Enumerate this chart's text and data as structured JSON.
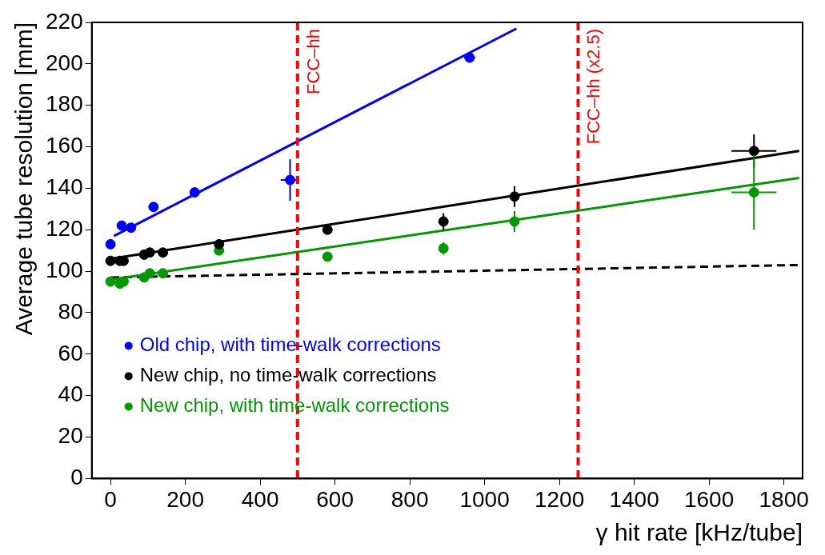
{
  "chart_data": {
    "type": "scatter",
    "xlabel": "γ hit rate [kHz/tube]",
    "ylabel": "Average tube resolution [mm]",
    "xlim": [
      -50,
      1850
    ],
    "xticks": [
      0,
      200,
      400,
      600,
      800,
      1000,
      1200,
      1400,
      1600,
      1800
    ],
    "ylim": [
      0,
      220
    ],
    "yticks": [
      0,
      20,
      40,
      60,
      80,
      100,
      120,
      140,
      160,
      180,
      200,
      220
    ],
    "grid": false,
    "legend": "bottom left",
    "marker": "circle",
    "series": [
      {
        "name": "Old chip, with time-walk corrections",
        "color": "#0000ff",
        "x": [
          0,
          30,
          55,
          115,
          225,
          480,
          960
        ],
        "values": [
          113,
          122,
          121,
          131,
          138,
          144,
          203
        ],
        "errors": [
          null,
          null,
          null,
          null,
          null,
          10,
          null
        ],
        "xerrors": [
          null,
          null,
          null,
          null,
          null,
          25,
          15
        ]
      },
      {
        "name": "New chip, no time-walk corrections",
        "color": "#000000",
        "x": [
          0,
          25,
          35,
          90,
          105,
          140,
          290,
          580,
          890,
          1080,
          1720
        ],
        "values": [
          105,
          105,
          105,
          108,
          109,
          109,
          113,
          120,
          124,
          136,
          158
        ],
        "errors": [
          null,
          null,
          null,
          null,
          null,
          null,
          null,
          null,
          4,
          5,
          8
        ],
        "xerrors": [
          null,
          null,
          null,
          null,
          null,
          null,
          null,
          null,
          null,
          null,
          60
        ]
      },
      {
        "name": "New chip, with time-walk corrections",
        "color": "#009900",
        "x": [
          0,
          25,
          35,
          90,
          105,
          140,
          290,
          580,
          890,
          1080,
          1720
        ],
        "values": [
          95,
          94,
          95,
          97,
          99,
          99,
          110,
          107,
          111,
          124,
          138
        ],
        "errors": [
          null,
          null,
          null,
          null,
          null,
          null,
          null,
          null,
          3,
          5,
          18
        ],
        "xerrors": [
          null,
          null,
          null,
          null,
          null,
          null,
          null,
          null,
          null,
          null,
          60
        ]
      },
      {
        "type": "line",
        "color": "#0000ff",
        "marker": "none",
        "line_style": "solid",
        "x": [
          9,
          1085
        ],
        "values": [
          117,
          217
        ]
      },
      {
        "type": "line",
        "color": "#000000",
        "marker": "none",
        "line_style": "solid",
        "x": [
          2,
          1841
        ],
        "values": [
          106,
          158
        ]
      },
      {
        "type": "line",
        "color": "#009900",
        "marker": "none",
        "line_style": "solid",
        "x": [
          2,
          1841
        ],
        "values": [
          96,
          145
        ]
      },
      {
        "type": "line",
        "color": "#000000",
        "marker": "none",
        "line_style": "dashed",
        "x": [
          2,
          1841
        ],
        "values": [
          97,
          103
        ]
      }
    ],
    "ref_lines": [
      {
        "axis": "x",
        "value": 500,
        "label": "FCC–hh",
        "color": "#ff0000",
        "line_style": "dashed"
      },
      {
        "axis": "x",
        "value": 1250,
        "label": "FCC–hh (x2.5)",
        "color": "#ff0000",
        "line_style": "dashed"
      }
    ]
  }
}
